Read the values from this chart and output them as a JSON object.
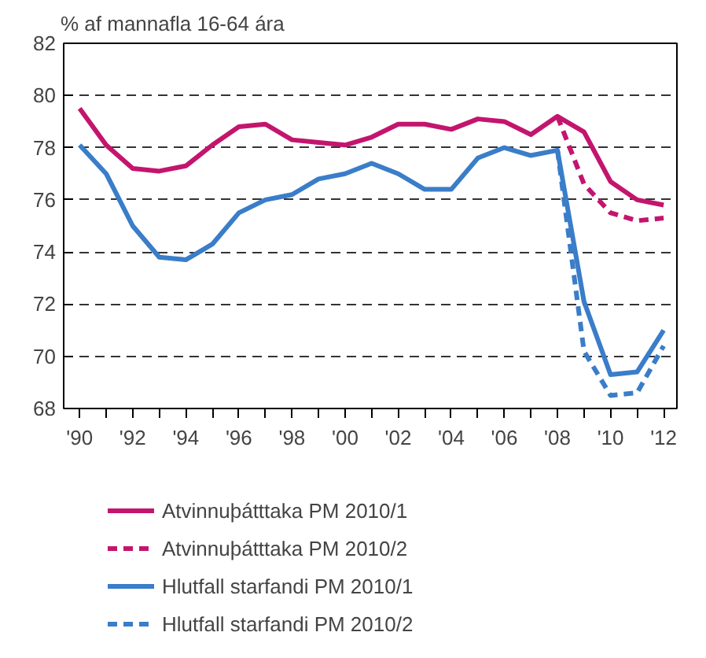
{
  "chart_data": {
    "type": "line",
    "ylabel": "% af mannafla 16-64 ára",
    "x": [
      1990,
      1991,
      1992,
      1993,
      1994,
      1995,
      1996,
      1997,
      1998,
      1999,
      2000,
      2001,
      2002,
      2003,
      2004,
      2005,
      2006,
      2007,
      2008,
      2009,
      2010,
      2011,
      2012
    ],
    "series": [
      {
        "name": "Atvinnuþátttaka PM 2010/1",
        "color": "#c3156e",
        "line_style": "solid",
        "values": [
          79.5,
          78.1,
          77.2,
          77.1,
          77.3,
          78.1,
          78.8,
          78.9,
          78.3,
          78.2,
          78.1,
          78.4,
          78.9,
          78.9,
          78.7,
          79.1,
          79.0,
          78.5,
          79.2,
          78.6,
          76.7,
          76.0,
          75.8
        ]
      },
      {
        "name": "Atvinnuþátttaka PM 2010/2",
        "color": "#c3156e",
        "line_style": "dashed",
        "x": [
          2008,
          2009,
          2010,
          2011,
          2012
        ],
        "values": [
          79.2,
          76.6,
          75.5,
          75.2,
          75.3
        ]
      },
      {
        "name": "Hlutfall starfandi PM 2010/1",
        "color": "#3a7dc9",
        "line_style": "solid",
        "values": [
          78.1,
          77.0,
          75.0,
          73.8,
          73.7,
          74.3,
          75.5,
          76.0,
          76.2,
          76.8,
          77.0,
          77.4,
          77.0,
          76.4,
          76.4,
          77.6,
          78.0,
          77.7,
          77.9,
          72.1,
          69.3,
          69.4,
          71.0
        ]
      },
      {
        "name": "Hlutfall starfandi PM 2010/2",
        "color": "#3a7dc9",
        "line_style": "dashed",
        "x": [
          2008,
          2009,
          2010,
          2011,
          2012
        ],
        "values": [
          77.9,
          70.2,
          68.5,
          68.6,
          70.4
        ]
      }
    ],
    "xlim": [
      1989.4,
      2012.5
    ],
    "ylim": [
      68,
      82
    ],
    "xticks": [
      {
        "value": 1990,
        "label": "'90"
      },
      {
        "value": 1991,
        "label": null
      },
      {
        "value": 1992,
        "label": "'92"
      },
      {
        "value": 1993,
        "label": null
      },
      {
        "value": 1994,
        "label": "'94"
      },
      {
        "value": 1995,
        "label": null
      },
      {
        "value": 1996,
        "label": "'96"
      },
      {
        "value": 1997,
        "label": null
      },
      {
        "value": 1998,
        "label": "'98"
      },
      {
        "value": 1999,
        "label": null
      },
      {
        "value": 2000,
        "label": "'00"
      },
      {
        "value": 2001,
        "label": null
      },
      {
        "value": 2002,
        "label": "'02"
      },
      {
        "value": 2003,
        "label": null
      },
      {
        "value": 2004,
        "label": "'04"
      },
      {
        "value": 2005,
        "label": null
      },
      {
        "value": 2006,
        "label": "'06"
      },
      {
        "value": 2007,
        "label": null
      },
      {
        "value": 2008,
        "label": "'08"
      },
      {
        "value": 2009,
        "label": null
      },
      {
        "value": 2010,
        "label": "'10"
      },
      {
        "value": 2011,
        "label": null
      },
      {
        "value": 2012,
        "label": "'12"
      }
    ],
    "yticks": [
      68,
      70,
      72,
      74,
      76,
      78,
      80,
      82
    ],
    "grid": "y",
    "legend": "bottom",
    "marker": "none"
  }
}
